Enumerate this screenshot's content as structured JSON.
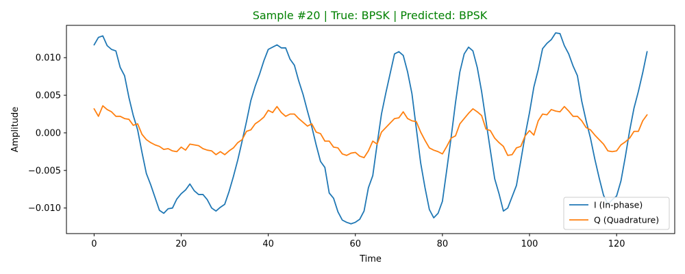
{
  "chart_data": {
    "type": "line",
    "title": "Sample #20 | True: BPSK | Predicted: BPSK",
    "title_color": "#008000",
    "xlabel": "Time",
    "ylabel": "Amplitude",
    "xlim": [
      -6.35,
      133.35
    ],
    "ylim": [
      -0.0134,
      0.0143
    ],
    "x_ticks": [
      0,
      20,
      40,
      60,
      80,
      100,
      120
    ],
    "x_tick_labels": [
      "0",
      "20",
      "40",
      "60",
      "80",
      "100",
      "120"
    ],
    "y_ticks": [
      -0.01,
      -0.005,
      0.0,
      0.005,
      0.01
    ],
    "y_tick_labels": [
      "−0.010",
      "−0.005",
      "0.000",
      "0.005",
      "0.010"
    ],
    "grid": false,
    "legend_position": "lower-right",
    "x": [
      0,
      1,
      2,
      3,
      4,
      5,
      6,
      7,
      8,
      9,
      10,
      11,
      12,
      13,
      14,
      15,
      16,
      17,
      18,
      19,
      20,
      21,
      22,
      23,
      24,
      25,
      26,
      27,
      28,
      29,
      30,
      31,
      32,
      33,
      34,
      35,
      36,
      37,
      38,
      39,
      40,
      41,
      42,
      43,
      44,
      45,
      46,
      47,
      48,
      49,
      50,
      51,
      52,
      53,
      54,
      55,
      56,
      57,
      58,
      59,
      60,
      61,
      62,
      63,
      64,
      65,
      66,
      67,
      68,
      69,
      70,
      71,
      72,
      73,
      74,
      75,
      76,
      77,
      78,
      79,
      80,
      81,
      82,
      83,
      84,
      85,
      86,
      87,
      88,
      89,
      90,
      91,
      92,
      93,
      94,
      95,
      96,
      97,
      98,
      99,
      100,
      101,
      102,
      103,
      104,
      105,
      106,
      107,
      108,
      109,
      110,
      111,
      112,
      113,
      114,
      115,
      116,
      117,
      118,
      119,
      120,
      121,
      122,
      123,
      124,
      125,
      126,
      127
    ],
    "series": [
      {
        "name": "I (In-phase)",
        "color": "#1f77b4",
        "values": [
          0.0117,
          0.0127,
          0.0129,
          0.0116,
          0.0111,
          0.0109,
          0.0087,
          0.0076,
          0.0047,
          0.0023,
          0.0004,
          -0.0026,
          -0.0054,
          -0.0069,
          -0.0086,
          -0.0103,
          -0.0107,
          -0.0101,
          -0.01,
          -0.0088,
          -0.0081,
          -0.0076,
          -0.0068,
          -0.0077,
          -0.0082,
          -0.0082,
          -0.0089,
          -0.01,
          -0.0104,
          -0.0099,
          -0.0095,
          -0.0078,
          -0.0058,
          -0.0036,
          -0.0011,
          0.0015,
          0.0043,
          0.0062,
          0.0078,
          0.0096,
          0.0111,
          0.0114,
          0.0117,
          0.0113,
          0.0113,
          0.0098,
          0.009,
          0.0069,
          0.0051,
          0.0029,
          0.0008,
          -0.0016,
          -0.0038,
          -0.0046,
          -0.008,
          -0.0087,
          -0.0105,
          -0.0116,
          -0.0119,
          -0.0121,
          -0.0119,
          -0.0115,
          -0.0104,
          -0.0073,
          -0.0057,
          -0.0015,
          0.0025,
          0.0053,
          0.0079,
          0.0105,
          0.0108,
          0.0103,
          0.0081,
          0.0052,
          0.0006,
          -0.004,
          -0.0073,
          -0.0102,
          -0.0113,
          -0.0107,
          -0.0091,
          -0.0049,
          -0.0006,
          0.004,
          0.0081,
          0.0105,
          0.0114,
          0.0109,
          0.0087,
          0.0055,
          0.0016,
          -0.0023,
          -0.0061,
          -0.0081,
          -0.0104,
          -0.01,
          -0.0085,
          -0.007,
          -0.0037,
          -0.0003,
          0.0027,
          0.0061,
          0.0084,
          0.0112,
          0.0119,
          0.0124,
          0.0133,
          0.0132,
          0.0116,
          0.0105,
          0.0089,
          0.0076,
          0.0042,
          0.0016,
          -0.0007,
          -0.0035,
          -0.006,
          -0.0083,
          -0.0095,
          -0.0089,
          -0.0084,
          -0.0064,
          -0.0032,
          0.0003,
          0.0033,
          0.0055,
          0.008,
          0.0108
        ]
      },
      {
        "name": "Q (Quadrature)",
        "color": "#ff7f0e",
        "values": [
          0.0032,
          0.0022,
          0.0036,
          0.0031,
          0.0028,
          0.0022,
          0.0022,
          0.0019,
          0.0018,
          0.001,
          0.0012,
          -0.0002,
          -0.0009,
          -0.0013,
          -0.0016,
          -0.0018,
          -0.0022,
          -0.0021,
          -0.0024,
          -0.0025,
          -0.0019,
          -0.0023,
          -0.0015,
          -0.0016,
          -0.0017,
          -0.0021,
          -0.0023,
          -0.0024,
          -0.0029,
          -0.0025,
          -0.0029,
          -0.0024,
          -0.002,
          -0.0013,
          -0.0009,
          0.0002,
          0.0004,
          0.0012,
          0.0016,
          0.0021,
          0.003,
          0.0027,
          0.0035,
          0.0027,
          0.0022,
          0.0025,
          0.0025,
          0.0019,
          0.0014,
          0.0009,
          0.0012,
          0.0001,
          -0.0001,
          -0.0011,
          -0.0011,
          -0.0019,
          -0.002,
          -0.0028,
          -0.003,
          -0.0027,
          -0.0026,
          -0.0031,
          -0.0033,
          -0.0024,
          -0.0011,
          -0.0015,
          0.0001,
          0.0007,
          0.0013,
          0.0019,
          0.002,
          0.0028,
          0.0019,
          0.0016,
          0.0015,
          0.0001,
          -0.001,
          -0.002,
          -0.0023,
          -0.0025,
          -0.0028,
          -0.0018,
          -0.0007,
          -0.0004,
          0.0012,
          0.0019,
          0.0026,
          0.0032,
          0.0028,
          0.0023,
          0.0005,
          0.0003,
          -0.0007,
          -0.0013,
          -0.0018,
          -0.003,
          -0.0029,
          -0.002,
          -0.0018,
          -0.0004,
          0.0003,
          -0.0003,
          0.0016,
          0.0025,
          0.0024,
          0.0031,
          0.0029,
          0.0028,
          0.0035,
          0.0029,
          0.0022,
          0.0022,
          0.0016,
          0.0007,
          0.0004,
          -0.0003,
          -0.0009,
          -0.0015,
          -0.0024,
          -0.0025,
          -0.0024,
          -0.0016,
          -0.0012,
          -0.0007,
          0.0002,
          0.0002,
          0.0016,
          0.0024
        ]
      }
    ]
  }
}
